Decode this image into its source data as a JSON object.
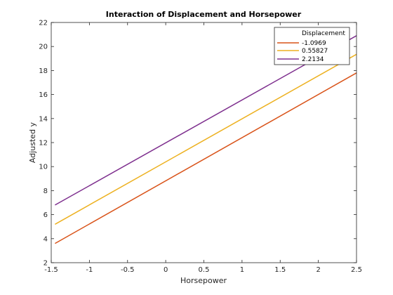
{
  "chart_data": {
    "type": "line",
    "title": "Interaction of Displacement and Horsepower",
    "xlabel": "Horsepower",
    "ylabel": "Adjusted y",
    "xlim": [
      -1.5,
      2.5
    ],
    "ylim": [
      2,
      22
    ],
    "xticks": [
      "-1.5",
      "-1",
      "-0.5",
      "0",
      "0.5",
      "1",
      "1.5",
      "2",
      "2.5"
    ],
    "yticks": [
      "2",
      "4",
      "6",
      "8",
      "10",
      "12",
      "14",
      "16",
      "18",
      "20",
      "22"
    ],
    "grid": false,
    "legend": {
      "title": "Displacement",
      "position": "top-right"
    },
    "series": [
      {
        "name": "-1.0969",
        "color": "#D95319",
        "x": [
          -1.45,
          2.5
        ],
        "y": [
          3.6,
          17.8
        ]
      },
      {
        "name": "0.55827",
        "color": "#EDB120",
        "x": [
          -1.45,
          2.5
        ],
        "y": [
          5.2,
          19.35
        ]
      },
      {
        "name": "2.2134",
        "color": "#7E2F8E",
        "x": [
          -1.45,
          2.5
        ],
        "y": [
          6.8,
          20.9
        ]
      }
    ]
  }
}
